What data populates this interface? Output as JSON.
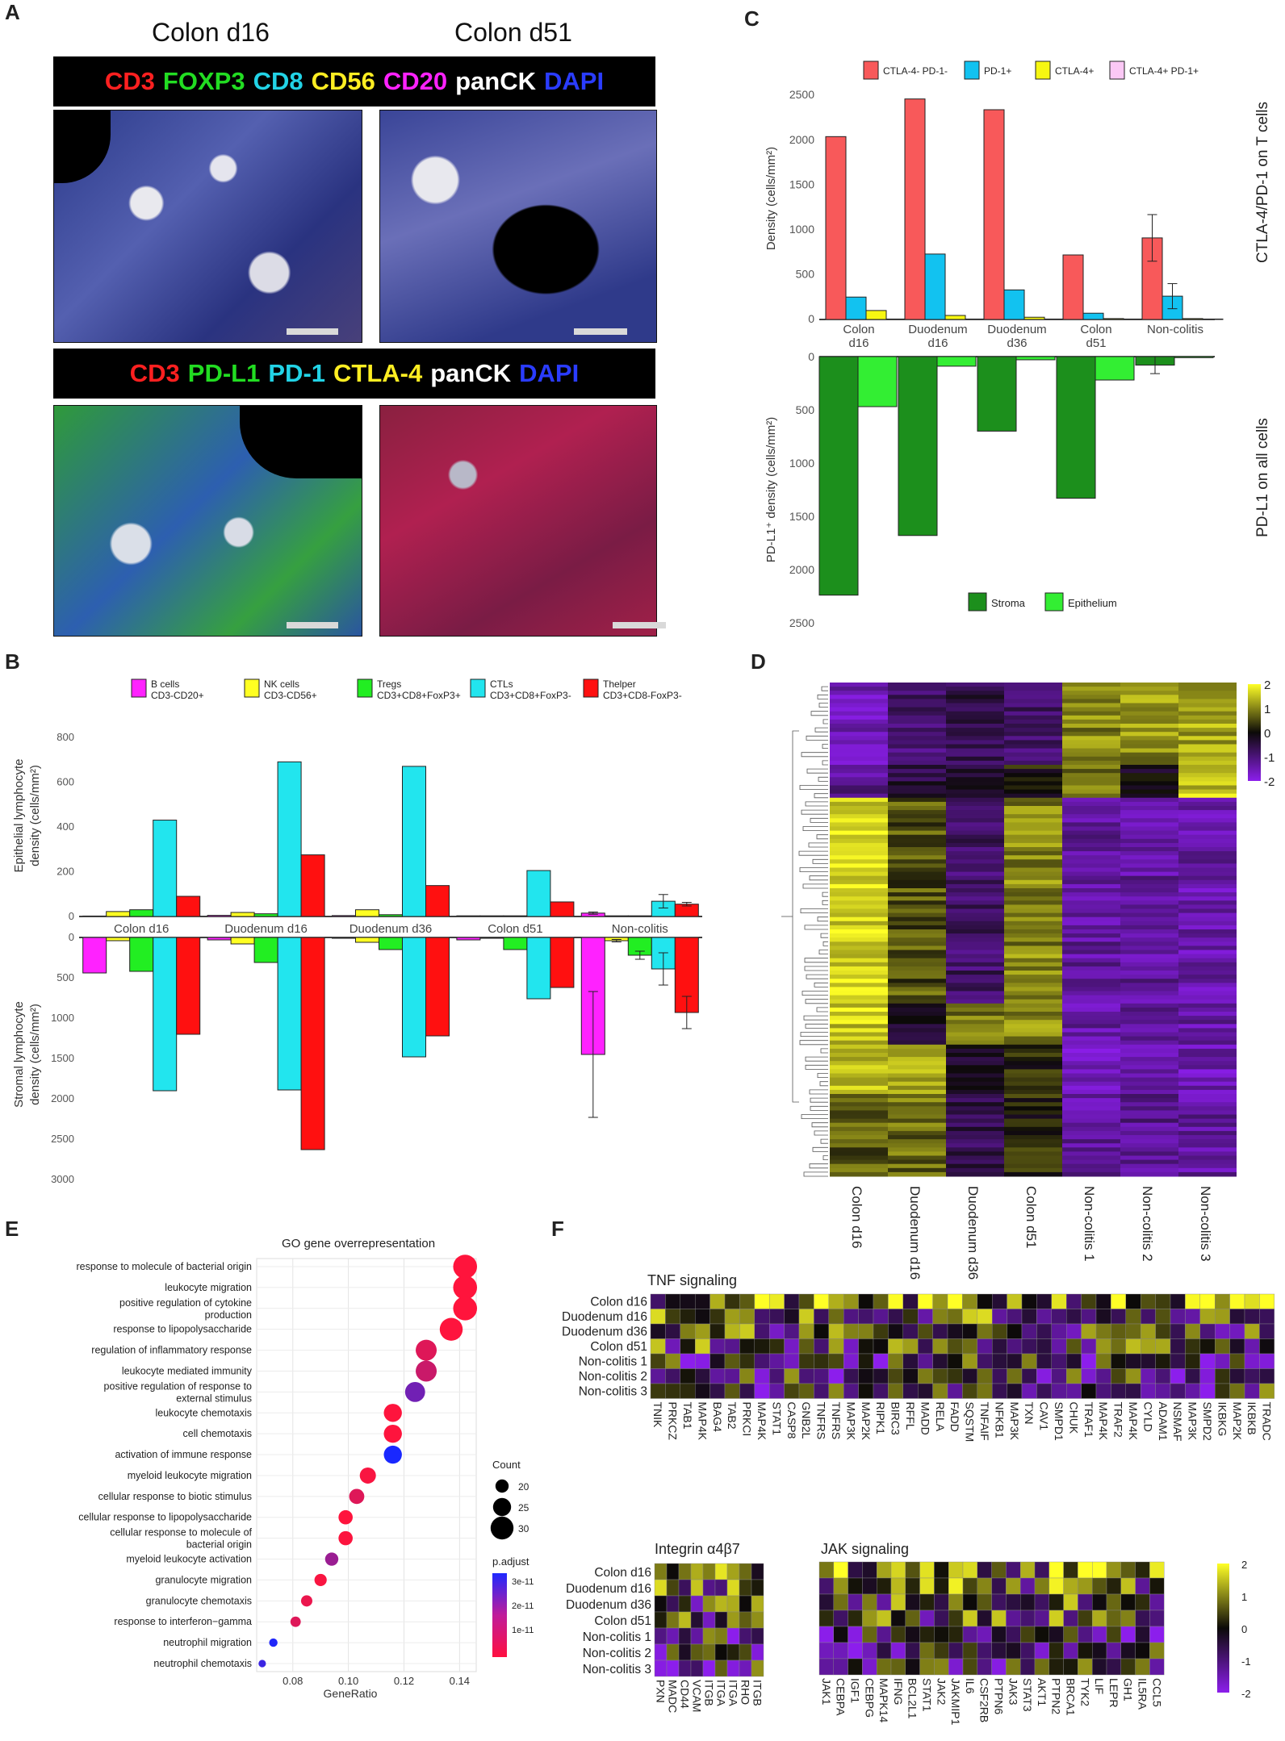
{
  "panels": {
    "a": "A",
    "b": "B",
    "c": "C",
    "d": "D",
    "e": "E",
    "f": "F"
  },
  "panel_a": {
    "col_titles": [
      "Colon d16",
      "Colon d51"
    ],
    "banner1": [
      {
        "text": "CD3",
        "color": "#ff2020"
      },
      {
        "text": "FOXP3",
        "color": "#22dd22"
      },
      {
        "text": "CD8",
        "color": "#22d3e6"
      },
      {
        "text": "CD56",
        "color": "#ffee22"
      },
      {
        "text": "CD20",
        "color": "#ff22ff"
      },
      {
        "text": "panCK",
        "color": "#ffffff"
      },
      {
        "text": "DAPI",
        "color": "#2a3cff"
      }
    ],
    "banner2": [
      {
        "text": "CD3",
        "color": "#ff2020"
      },
      {
        "text": "PD-L1",
        "color": "#22dd22"
      },
      {
        "text": "PD-1",
        "color": "#22d3e6"
      },
      {
        "text": "CTLA-4",
        "color": "#ffee22"
      },
      {
        "text": "panCK",
        "color": "#ffffff"
      },
      {
        "text": "DAPI",
        "color": "#2a3cff"
      }
    ]
  },
  "chart_data": [
    {
      "panel": "B",
      "type": "bar",
      "categories": [
        "Colon d16",
        "Duodenum d16",
        "Duodenum d36",
        "Colon d51",
        "Non-colitis"
      ],
      "legend": [
        {
          "name": "B cells",
          "sub": "CD3-CD20+",
          "color": "#ff22ff"
        },
        {
          "name": "NK cells",
          "sub": "CD3-CD56+",
          "color": "#ffff22"
        },
        {
          "name": "Tregs",
          "sub": "CD3+CD8+FoxP3+",
          "color": "#22ee22"
        },
        {
          "name": "CTLs",
          "sub": "CD3+CD8+FoxP3-",
          "color": "#22e5ee"
        },
        {
          "name": "Thelper",
          "sub": "CD3+CD8-FoxP3-",
          "color": "#ff1010"
        }
      ],
      "top": {
        "ylabel": "Epithelial lymphocyte density (cells/mm²)",
        "ylim": [
          0,
          900
        ],
        "ticks": [
          0,
          200,
          400,
          600,
          800
        ],
        "series": [
          [
            2,
            5,
            4,
            3,
            15
          ],
          [
            22,
            18,
            30,
            3,
            3
          ],
          [
            30,
            12,
            8,
            3,
            3
          ],
          [
            430,
            690,
            670,
            205,
            68
          ],
          [
            90,
            275,
            138,
            65,
            55
          ]
        ],
        "errors": [
          [
            0,
            0,
            0,
            0,
            5
          ],
          [
            0,
            0,
            0,
            0,
            0
          ],
          [
            0,
            0,
            0,
            0,
            0
          ],
          [
            0,
            0,
            0,
            0,
            30
          ],
          [
            0,
            0,
            0,
            0,
            8
          ]
        ]
      },
      "bottom": {
        "ylabel": "Stromal lymphocyte density (cells/mm²)",
        "ylim": [
          0,
          3000
        ],
        "ticks": [
          0,
          500,
          1000,
          1500,
          2000,
          2500,
          3000
        ],
        "series": [
          [
            440,
            30,
            10,
            30,
            1450
          ],
          [
            40,
            80,
            60,
            10,
            40
          ],
          [
            420,
            310,
            150,
            150,
            220
          ],
          [
            1900,
            1890,
            1480,
            760,
            390
          ],
          [
            1200,
            2630,
            1220,
            620,
            930
          ]
        ],
        "errors": [
          [
            0,
            0,
            0,
            0,
            780
          ],
          [
            0,
            0,
            0,
            0,
            15
          ],
          [
            0,
            0,
            0,
            0,
            50
          ],
          [
            0,
            0,
            0,
            0,
            200
          ],
          [
            0,
            0,
            0,
            0,
            200
          ]
        ]
      }
    },
    {
      "panel": "C",
      "type": "bar",
      "categories": [
        "Colon d16",
        "Duodenum d16",
        "Duodenum d36",
        "Colon d51",
        "Non-colitis"
      ],
      "top": {
        "ylabel": "Density (cells/mm²)",
        "side_label": "CTLA-4/PD-1 on T cells",
        "ylim": [
          0,
          2700
        ],
        "ticks": [
          0,
          500,
          1000,
          1500,
          2000,
          2500
        ],
        "legend": [
          {
            "name": "CTLA-4- PD-1-",
            "color": "#f8595a"
          },
          {
            "name": "PD-1+",
            "color": "#12c2f0"
          },
          {
            "name": "CTLA-4+",
            "color": "#f7f711"
          },
          {
            "name": "CTLA-4+ PD-1+",
            "color": "#fbc8f5"
          }
        ],
        "series": [
          [
            2040,
            2460,
            2340,
            720,
            910
          ],
          [
            250,
            730,
            330,
            70,
            260
          ],
          [
            100,
            45,
            25,
            10,
            10
          ],
          [
            5,
            5,
            5,
            5,
            5
          ]
        ],
        "errors": [
          [
            0,
            0,
            0,
            0,
            260
          ],
          [
            0,
            0,
            0,
            0,
            140
          ],
          [
            0,
            0,
            0,
            0,
            0
          ],
          [
            0,
            0,
            0,
            0,
            0
          ]
        ]
      },
      "bottom": {
        "ylabel": "PD-L1⁺ density (cells/mm²)",
        "side_label": "PD-L1 on all cells",
        "ylim": [
          0,
          2500
        ],
        "ticks": [
          0,
          500,
          1000,
          1500,
          2000,
          2500
        ],
        "legend": [
          {
            "name": "Stroma",
            "color": "#1c8f1c"
          },
          {
            "name": "Epithelium",
            "color": "#33ee33"
          }
        ],
        "series": [
          [
            2240,
            1680,
            700,
            1330,
            80
          ],
          [
            470,
            90,
            30,
            220,
            10
          ]
        ],
        "errors": [
          [
            0,
            0,
            0,
            0,
            80
          ],
          [
            0,
            0,
            0,
            0,
            0
          ]
        ]
      }
    },
    {
      "panel": "D",
      "type": "heatmap",
      "columns": [
        "Colon d16",
        "Duodenum d16",
        "Duodenum d36",
        "Colon d51",
        "Non-colitis 1",
        "Non-colitis 2",
        "Non-colitis 3"
      ],
      "colorbar_ticks": [
        "2",
        "1",
        "0",
        "-1",
        "-2"
      ],
      "vmin": -2,
      "vmax": 2
    },
    {
      "panel": "E",
      "type": "scatter",
      "title": "GO gene overrepresentation",
      "xlabel": "GeneRatio",
      "xlim": [
        0.067,
        0.146
      ],
      "xticks": [
        "0.08",
        "0.10",
        "0.12",
        "0.14"
      ],
      "terms": [
        {
          "term": "response to molecule of bacterial origin",
          "ratio": 0.142,
          "count": 31,
          "padj": 1e-13
        },
        {
          "term": "leukocyte migration",
          "ratio": 0.142,
          "count": 31,
          "padj": 1e-13
        },
        {
          "term": "positive regulation of cytokine production",
          "ratio": 0.142,
          "count": 31,
          "padj": 1e-13
        },
        {
          "term": "response to lipopolysaccharide",
          "ratio": 0.137,
          "count": 30,
          "padj": 3e-13
        },
        {
          "term": "regulation of inflammatory response",
          "ratio": 0.128,
          "count": 28,
          "padj": 5e-12
        },
        {
          "term": "leukocyte mediated immunity",
          "ratio": 0.128,
          "count": 28,
          "padj": 8e-12
        },
        {
          "term": "positive regulation of response to external stimulus",
          "ratio": 0.124,
          "count": 27,
          "padj": 2.1e-11
        },
        {
          "term": "leukocyte chemotaxis",
          "ratio": 0.116,
          "count": 25,
          "padj": 3e-13
        },
        {
          "term": "cell chemotaxis",
          "ratio": 0.116,
          "count": 25,
          "padj": 3e-13
        },
        {
          "term": "activation of immune response",
          "ratio": 0.116,
          "count": 25,
          "padj": 3.4e-11
        },
        {
          "term": "myeloid leukocyte migration",
          "ratio": 0.107,
          "count": 23,
          "padj": 1e-12
        },
        {
          "term": "cellular response to biotic stimulus",
          "ratio": 0.103,
          "count": 22,
          "padj": 5e-12
        },
        {
          "term": "cellular response to lipopolysaccharide",
          "ratio": 0.099,
          "count": 21,
          "padj": 3e-13
        },
        {
          "term": "cellular response to molecule of bacterial origin",
          "ratio": 0.099,
          "count": 21,
          "padj": 5e-13
        },
        {
          "term": "myeloid leukocyte activation",
          "ratio": 0.094,
          "count": 20,
          "padj": 1.5e-11
        },
        {
          "term": "granulocyte migration",
          "ratio": 0.09,
          "count": 19,
          "padj": 1e-12
        },
        {
          "term": "granulocyte chemotaxis",
          "ratio": 0.085,
          "count": 18,
          "padj": 3e-12
        },
        {
          "term": "response to interferon−gamma",
          "ratio": 0.081,
          "count": 17,
          "padj": 5e-12
        },
        {
          "term": "neutrophil migration",
          "ratio": 0.073,
          "count": 15,
          "padj": 3.3e-11
        },
        {
          "term": "neutrophil chemotaxis",
          "ratio": 0.069,
          "count": 14,
          "padj": 2.9e-11
        }
      ],
      "count_legend": {
        "title": "Count",
        "values": [
          "20",
          "25",
          "30"
        ]
      },
      "padj_legend": {
        "title": "p.adjust",
        "values": [
          "3e-11",
          "2e-11",
          "1e-11"
        ]
      }
    },
    {
      "panel": "F",
      "type": "heatmap",
      "rows": [
        "Colon d16",
        "Duodenum d16",
        "Duodenum d36",
        "Colon d51",
        "Non-colitis 1",
        "Non-colitis 2",
        "Non-colitis 3"
      ],
      "colorbar_ticks": [
        "2",
        "1",
        "0",
        "-1",
        "-2"
      ],
      "tnf": {
        "title": "TNF signaling",
        "genes": [
          "TNIK",
          "PRKCZ",
          "TAB1",
          "MAP4K",
          "BAG4",
          "TAB2",
          "PRKCI",
          "MAP4K",
          "STAT1",
          "CASP8",
          "GNB2L",
          "TNFRS",
          "TNFRS",
          "MAP3K",
          "MAP2K",
          "RIPK1",
          "BIRC3",
          "RFFL",
          "MADD",
          "RELA",
          "FADD",
          "SQSTM",
          "TNFAIF",
          "NFKB1",
          "MAP3K",
          "TXN",
          "CAV1",
          "SMPD1",
          "CHUK",
          "TRAF1",
          "MAP4K",
          "TRAF2",
          "MAP4K",
          "CYLD",
          "ADAM1",
          "NSMAF",
          "MAP3K",
          "SMPD2",
          "IKBKG",
          "MAP2K",
          "IKBKB",
          "TRADC"
        ]
      },
      "integrin": {
        "title": "Integrin α4β7",
        "genes": [
          "PXN",
          "MADC",
          "CD44",
          "VCAM",
          "ITGB",
          "ITGA",
          "ITGA",
          "RHO",
          "ITGB"
        ]
      },
      "jak": {
        "title": "JAK signaling",
        "genes": [
          "JAK1",
          "CEBPA",
          "IGF1",
          "CEBPG",
          "MAPK14",
          "IFNG",
          "BCL2L1",
          "STAT1",
          "JAK2",
          "JAKMIP1",
          "IL6",
          "CSF2RB",
          "PTPN6",
          "JAK3",
          "STAT3",
          "AKT1",
          "PTPN2",
          "BRCA1",
          "TYK2",
          "LIF",
          "LEPR",
          "GH1",
          "IL5RA",
          "CCL5"
        ]
      }
    }
  ]
}
